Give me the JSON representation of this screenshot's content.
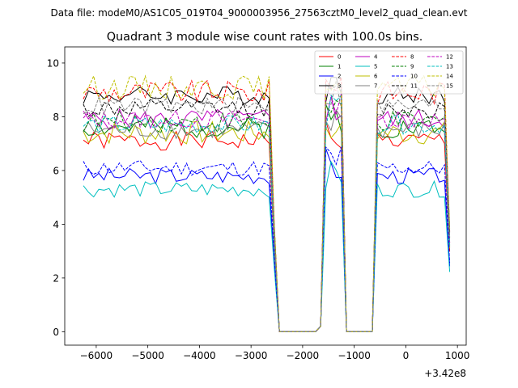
{
  "suptitle": "Data file: modeM0/AS1C05_019T04_9000003956_27563cztM0_level2_quad_clean.evt",
  "chart_data": {
    "type": "line",
    "title": "Quadrant 3 module wise count rates with 100.0s bins.",
    "xlabel": "",
    "ylabel": "",
    "x_offset_label": "+3.42e8",
    "xlim": [
      -6610,
      1170
    ],
    "ylim": [
      -0.5,
      10.6
    ],
    "xticks": [
      -6000,
      -5000,
      -4000,
      -3000,
      -2000,
      -1000,
      0,
      1000
    ],
    "xtick_labels": [
      "−6000",
      "−5000",
      "−4000",
      "−3000",
      "−2000",
      "−1000",
      "0",
      "1000"
    ],
    "yticks": [
      0,
      2,
      4,
      6,
      8,
      10
    ],
    "ytick_labels": [
      "0",
      "2",
      "4",
      "6",
      "8",
      "10"
    ],
    "legend_position": "top-right",
    "legend_columns": 4,
    "x_start": -6250,
    "bin_width": 100,
    "gaps": [
      [
        -2450,
        -1650
      ],
      [
        -1150,
        -650
      ]
    ],
    "series": [
      {
        "name": "0",
        "color": "#ff0000",
        "style": "solid",
        "level": 7.1,
        "amp": 0.35,
        "seed": 1
      },
      {
        "name": "1",
        "color": "#008000",
        "style": "solid",
        "level": 7.6,
        "amp": 0.4,
        "seed": 2
      },
      {
        "name": "2",
        "color": "#0000ff",
        "style": "solid",
        "level": 5.8,
        "amp": 0.3,
        "seed": 3
      },
      {
        "name": "3",
        "color": "#000000",
        "style": "solid",
        "level": 8.8,
        "amp": 0.35,
        "seed": 4
      },
      {
        "name": "4",
        "color": "#bf00bf",
        "style": "solid",
        "level": 7.9,
        "amp": 0.4,
        "seed": 5
      },
      {
        "name": "5",
        "color": "#00bfbf",
        "style": "solid",
        "level": 5.3,
        "amp": 0.3,
        "seed": 6
      },
      {
        "name": "6",
        "color": "#bfbf00",
        "style": "solid",
        "level": 7.4,
        "amp": 0.45,
        "seed": 7
      },
      {
        "name": "7",
        "color": "#808080",
        "style": "solid",
        "level": 7.5,
        "amp": 0.35,
        "seed": 8
      },
      {
        "name": "8",
        "color": "#ff0000",
        "style": "dashed",
        "level": 8.9,
        "amp": 0.45,
        "seed": 9
      },
      {
        "name": "9",
        "color": "#008000",
        "style": "dashed",
        "level": 7.8,
        "amp": 0.4,
        "seed": 10
      },
      {
        "name": "10",
        "color": "#0000ff",
        "style": "dashed",
        "level": 6.1,
        "amp": 0.3,
        "seed": 11
      },
      {
        "name": "11",
        "color": "#000000",
        "style": "dashed",
        "level": 8.3,
        "amp": 0.35,
        "seed": 12
      },
      {
        "name": "12",
        "color": "#bf00bf",
        "style": "dashed",
        "level": 7.9,
        "amp": 0.35,
        "seed": 13
      },
      {
        "name": "13",
        "color": "#00bfbf",
        "style": "dashed",
        "level": 7.7,
        "amp": 0.35,
        "seed": 14
      },
      {
        "name": "14",
        "color": "#bfbf00",
        "style": "dashed",
        "level": 9.1,
        "amp": 0.45,
        "seed": 15
      },
      {
        "name": "15",
        "color": "#808080",
        "style": "dashed",
        "level": 8.4,
        "amp": 0.35,
        "seed": 16
      }
    ]
  }
}
